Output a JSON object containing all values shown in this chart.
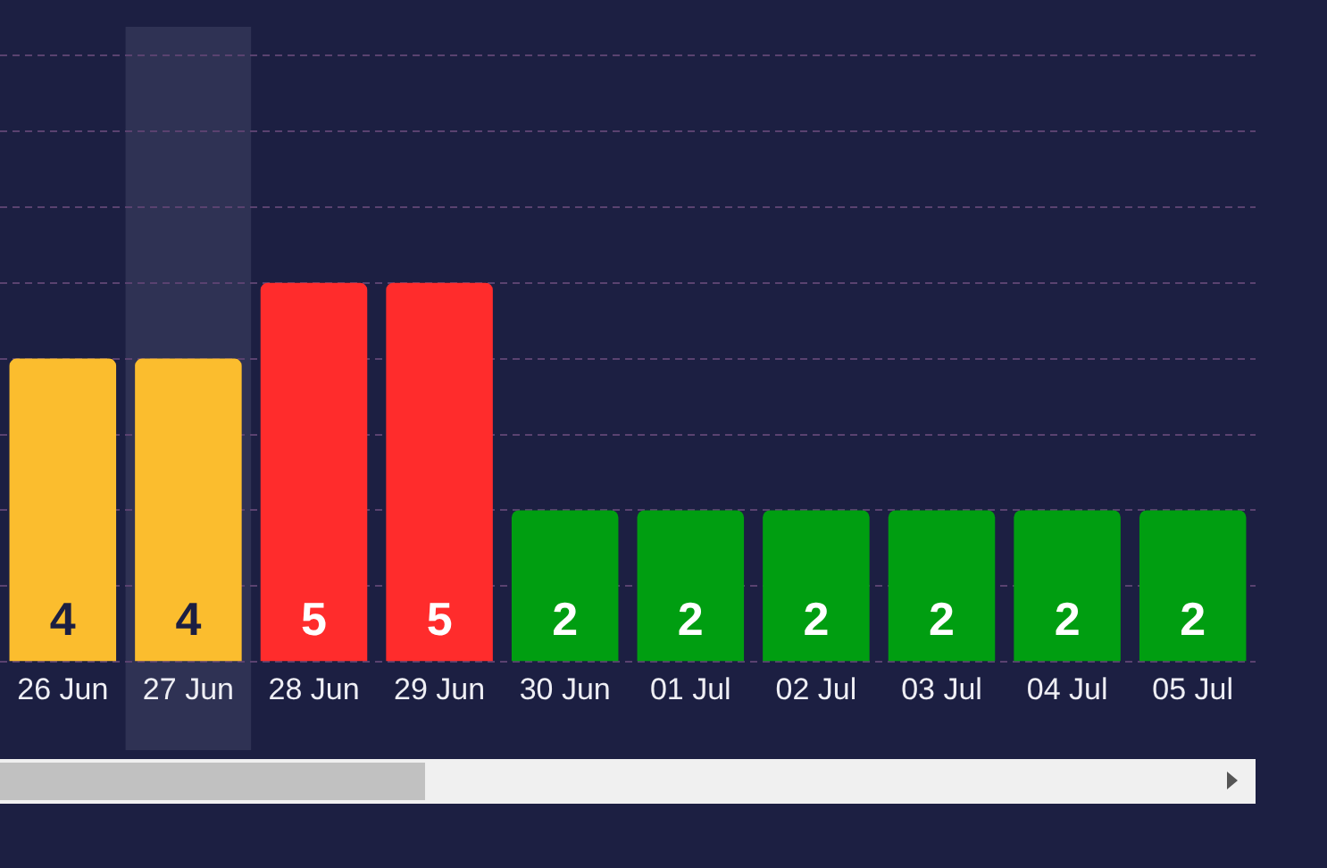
{
  "chart_data": {
    "type": "bar",
    "categories": [
      "26 Jun",
      "27 Jun",
      "28 Jun",
      "29 Jun",
      "30 Jun",
      "01 Jul",
      "02 Jul",
      "03 Jul",
      "04 Jul",
      "05 Jul"
    ],
    "values": [
      4,
      4,
      5,
      5,
      2,
      2,
      2,
      2,
      2,
      2
    ],
    "colors": [
      "#fbbd2e",
      "#fbbd2e",
      "#ff2c2c",
      "#ff2c2c",
      "#009e11",
      "#009e11",
      "#009e11",
      "#009e11",
      "#009e11",
      "#009e11"
    ],
    "ylim": [
      0,
      8
    ],
    "yticks": [
      {
        "value": 0,
        "label": null
      },
      {
        "value": 1,
        "label": null
      },
      {
        "value": 2,
        "label": null
      },
      {
        "value": 3,
        "label": null
      },
      {
        "value": 4,
        "label": null
      },
      {
        "value": 5,
        "label": null
      },
      {
        "value": 6,
        "label": null
      },
      {
        "value": 7,
        "label": null
      },
      {
        "value": 8,
        "label": null
      }
    ],
    "grid": "y",
    "tick_labels": "x",
    "data_labels": true,
    "bands": [
      {
        "axis": "x",
        "from": "27 Jun",
        "to": "27 Jun",
        "color": "#2f3254"
      }
    ]
  }
}
